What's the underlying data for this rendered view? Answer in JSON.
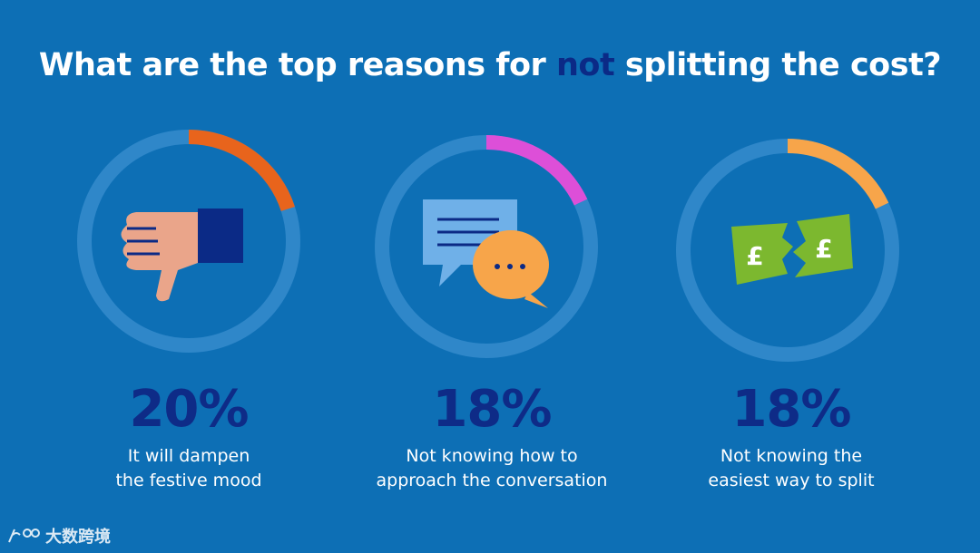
{
  "title": {
    "before": "What are the top reasons for ",
    "highlight": "not",
    "after": " splitting the cost?"
  },
  "colors": {
    "background": "#0d6fb5",
    "track": "#2f87c9",
    "percent_text": "#0e2b87"
  },
  "chart_data": {
    "type": "donut",
    "max": 100,
    "items": [
      {
        "value": 20,
        "percent_label": "20%",
        "label_lines": [
          "It will dampen",
          "the festive mood"
        ],
        "color": "#e8641c",
        "icon": "thumbs-down-icon"
      },
      {
        "value": 18,
        "percent_label": "18%",
        "label_lines": [
          "Not knowing how to",
          "approach the conversation"
        ],
        "color": "#dd4fd8",
        "icon": "chat-bubbles-icon"
      },
      {
        "value": 18,
        "percent_label": "18%",
        "label_lines": [
          "Not knowing the",
          "easiest way to split"
        ],
        "color": "#f7a54a",
        "icon": "torn-pound-note-icon"
      }
    ]
  },
  "watermark": {
    "text": "大数跨境"
  }
}
